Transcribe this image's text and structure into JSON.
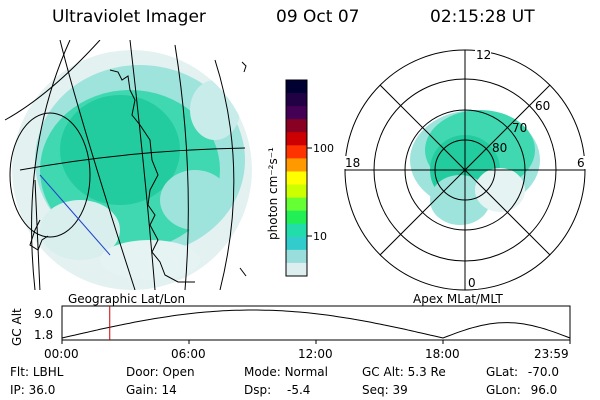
{
  "header": {
    "title": "Ultraviolet Imager",
    "date": "09 Oct 07",
    "time": "02:15:28 UT"
  },
  "colorbar": {
    "unit_label": "photon cm⁻²s⁻¹",
    "ticks": [
      "100",
      "10"
    ],
    "colors": [
      "#000033",
      "#220044",
      "#440055",
      "#880022",
      "#cc0000",
      "#ff3300",
      "#ff9900",
      "#ffff00",
      "#ccff00",
      "#66ff33",
      "#22ee55",
      "#22ddaa",
      "#33cccc",
      "#99dddd",
      "#ddeeee"
    ]
  },
  "polar_plot": {
    "mlt_labels": [
      "12",
      "18",
      "6",
      "0"
    ],
    "lat_labels": [
      "60",
      "70",
      "80"
    ]
  },
  "panel_labels": {
    "left": "Geographic Lat/Lon",
    "right": "Apex MLat/MLT"
  },
  "altitude_chart": {
    "ylabel": "GC Alt",
    "ytick_top": "9.0",
    "ytick_bottom": "1.8",
    "xticks": [
      "00:00",
      "06:00",
      "12:00",
      "18:00",
      "23:59"
    ],
    "current_time_fraction": 0.094
  },
  "info": {
    "row1": [
      {
        "label": "Flt:",
        "value": "LBHL"
      },
      {
        "label": "Door:",
        "value": "Open"
      },
      {
        "label": "Mode:",
        "value": "Normal"
      },
      {
        "label": "GC Alt:",
        "value": "5.3 Re"
      },
      {
        "label": "GLat:",
        "value": "-70.0"
      }
    ],
    "row2": [
      {
        "label": "IP:",
        "value": "36.0"
      },
      {
        "label": "Gain:",
        "value": "14"
      },
      {
        "label": "Dsp:",
        "value": "-5.4"
      },
      {
        "label": "Seq:",
        "value": "39"
      },
      {
        "label": "GLon:",
        "value": "96.0"
      }
    ]
  }
}
